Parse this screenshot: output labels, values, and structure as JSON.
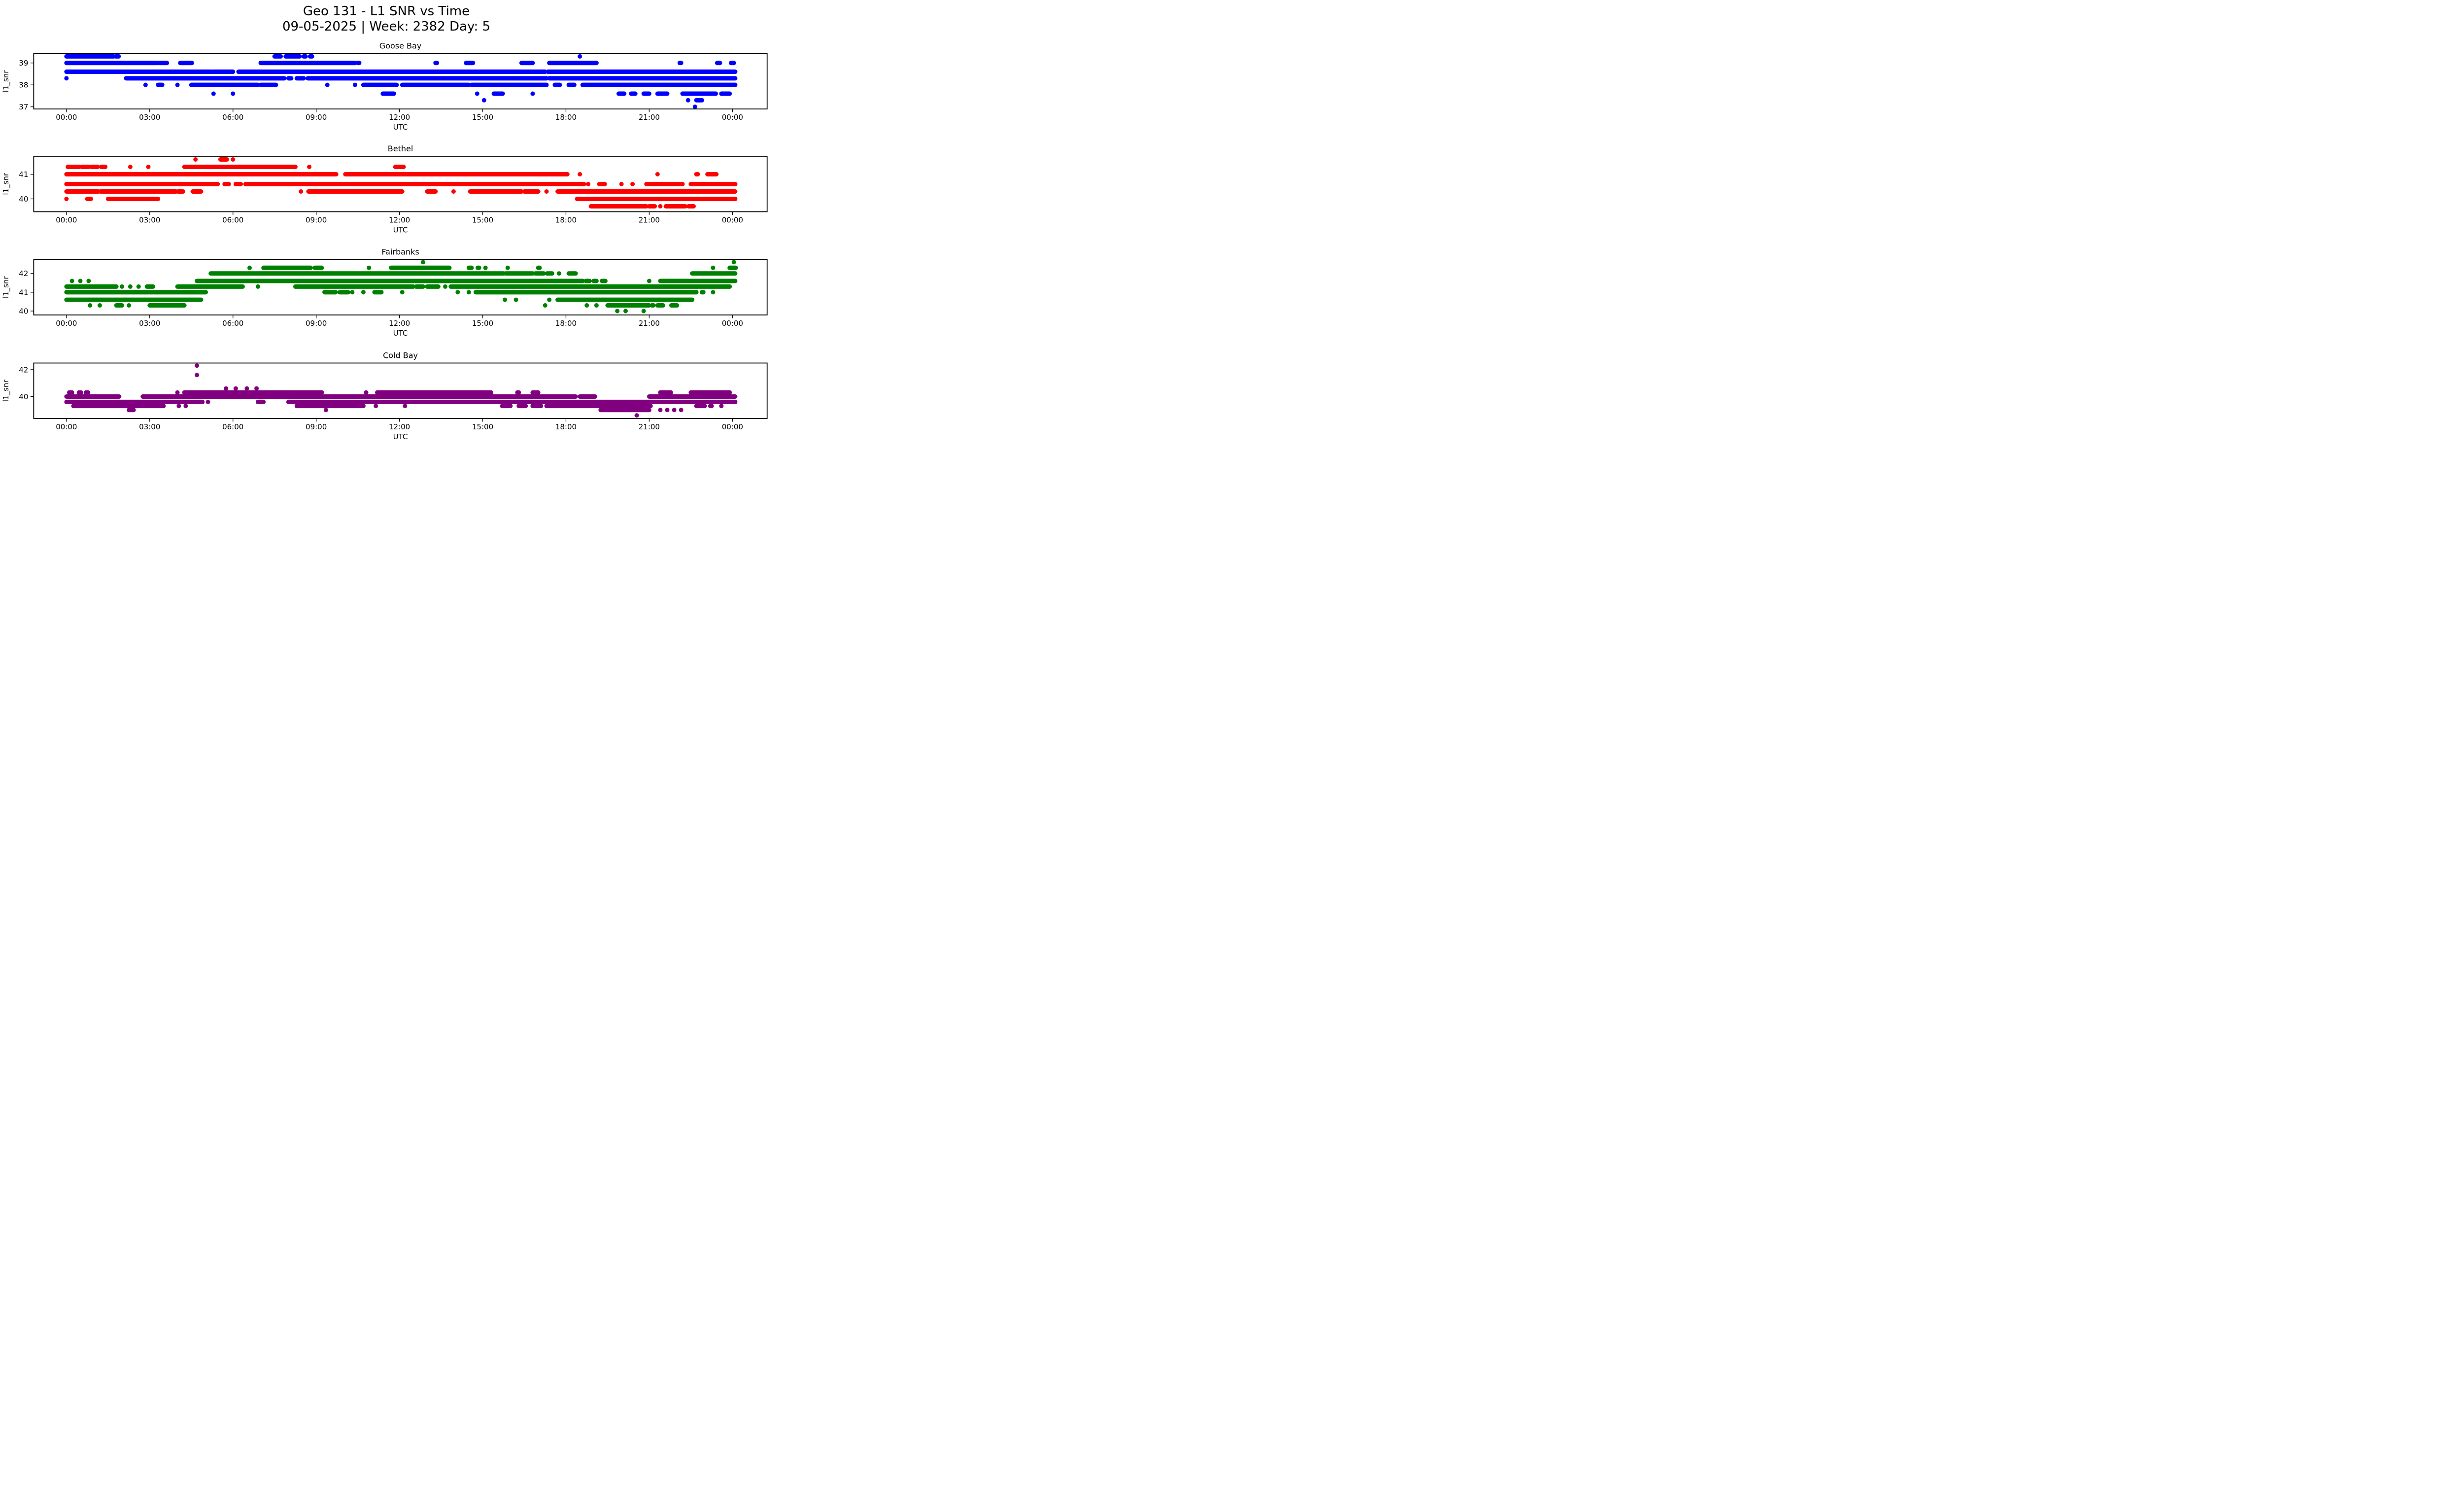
{
  "figure": {
    "title": "Geo 131 - L1 SNR vs Time",
    "subtitle": "09-05-2025 | Week: 2382 Day: 5",
    "background_color": "#ffffff",
    "text_color": "#000000"
  },
  "axes_common": {
    "xlabel": "UTC",
    "ylabel": "l1_snr",
    "x_tick_hours": [
      0,
      3,
      6,
      9,
      12,
      15,
      18,
      21,
      24
    ],
    "x_tick_labels": [
      "00:00",
      "03:00",
      "06:00",
      "09:00",
      "12:00",
      "15:00",
      "18:00",
      "21:00",
      "00:00"
    ],
    "grid": false,
    "legend": "none"
  },
  "chart_data": [
    {
      "type": "scatter",
      "title": "Goose Bay",
      "color": "#0000ff",
      "xlabel": "UTC",
      "ylabel": "l1_snr",
      "ylim": [
        36.9,
        39.43
      ],
      "xlim": [
        -1.18,
        25.25
      ],
      "y_ticks": [
        37,
        38,
        39
      ],
      "bands": [
        {
          "snr": 39.3,
          "segments": [
            [
              0,
              1.7
            ],
            [
              1.78,
              1.88
            ],
            [
              7.5,
              7.72
            ],
            [
              7.9,
              8.4
            ],
            [
              8.55,
              8.62
            ],
            [
              8.78,
              8.85
            ],
            [
              18.5,
              18.5
            ]
          ]
        },
        {
          "snr": 39.0,
          "segments": [
            [
              0,
              3.28
            ],
            [
              3.35,
              3.62
            ],
            [
              4.1,
              4.52
            ],
            [
              7.0,
              10.4
            ],
            [
              10.5,
              10.55
            ],
            [
              13.3,
              13.35
            ],
            [
              14.4,
              14.65
            ],
            [
              16.4,
              16.8
            ],
            [
              17.4,
              19.1
            ],
            [
              22.1,
              22.15
            ],
            [
              23.45,
              23.55
            ],
            [
              23.95,
              24.05
            ]
          ]
        },
        {
          "snr": 38.6,
          "segments": [
            [
              0,
              5.25
            ],
            [
              5.3,
              6.0
            ],
            [
              6.2,
              17.25
            ],
            [
              17.35,
              24.1
            ]
          ]
        },
        {
          "snr": 38.3,
          "segments": [
            [
              0,
              0
            ],
            [
              2.15,
              7.85
            ],
            [
              8.0,
              8.1
            ],
            [
              8.3,
              8.55
            ],
            [
              8.7,
              17.3
            ],
            [
              17.4,
              24.1
            ]
          ]
        },
        {
          "snr": 38.0,
          "segments": [
            [
              2.85,
              2.85
            ],
            [
              3.3,
              3.45
            ],
            [
              4.0,
              4.0
            ],
            [
              4.5,
              6.9
            ],
            [
              7.0,
              7.55
            ],
            [
              9.4,
              9.4
            ],
            [
              10.4,
              10.4
            ],
            [
              10.7,
              11.9
            ],
            [
              12.1,
              14.5
            ],
            [
              14.6,
              17.3
            ],
            [
              17.6,
              17.78
            ],
            [
              18.1,
              18.3
            ],
            [
              18.6,
              24.1
            ]
          ]
        },
        {
          "snr": 37.6,
          "segments": [
            [
              5.3,
              5.3
            ],
            [
              6.0,
              6.0
            ],
            [
              11.4,
              11.8
            ],
            [
              14.8,
              14.8
            ],
            [
              15.4,
              15.72
            ],
            [
              16.8,
              16.8
            ],
            [
              19.9,
              20.1
            ],
            [
              20.35,
              20.5
            ],
            [
              20.8,
              21.0
            ],
            [
              21.3,
              21.65
            ],
            [
              22.2,
              23.4
            ],
            [
              23.6,
              23.9
            ]
          ]
        },
        {
          "snr": 37.3,
          "segments": [
            [
              15.05,
              15.05
            ],
            [
              22.4,
              22.4
            ],
            [
              22.7,
              22.9
            ]
          ]
        },
        {
          "snr": 37.0,
          "segments": [
            [
              22.65,
              22.65
            ]
          ]
        }
      ]
    },
    {
      "type": "scatter",
      "title": "Bethel",
      "color": "#ff0000",
      "xlabel": "UTC",
      "ylabel": "l1_snr",
      "ylim": [
        39.48,
        41.73
      ],
      "xlim": [
        -1.18,
        25.25
      ],
      "y_ticks": [
        40,
        41
      ],
      "bands": [
        {
          "snr": 41.6,
          "segments": [
            [
              4.65,
              4.65
            ],
            [
              5.55,
              5.78
            ],
            [
              6.0,
              6.0
            ]
          ]
        },
        {
          "snr": 41.3,
          "segments": [
            [
              0.05,
              0.45
            ],
            [
              0.55,
              0.8
            ],
            [
              0.9,
              1.12
            ],
            [
              1.25,
              1.4
            ],
            [
              2.3,
              2.3
            ],
            [
              2.95,
              2.95
            ],
            [
              4.25,
              8.25
            ],
            [
              8.75,
              8.75
            ],
            [
              11.85,
              12.15
            ]
          ]
        },
        {
          "snr": 41.0,
          "segments": [
            [
              0,
              9.72
            ],
            [
              10.05,
              18.05
            ],
            [
              18.5,
              18.5
            ],
            [
              21.3,
              21.3
            ],
            [
              22.7,
              22.75
            ],
            [
              23.1,
              23.42
            ]
          ]
        },
        {
          "snr": 40.6,
          "segments": [
            [
              0,
              5.45
            ],
            [
              5.7,
              5.85
            ],
            [
              6.1,
              6.28
            ],
            [
              6.45,
              18.65
            ],
            [
              18.8,
              18.8
            ],
            [
              19.2,
              19.4
            ],
            [
              20.0,
              20.0
            ],
            [
              20.4,
              20.4
            ],
            [
              20.9,
              22.2
            ],
            [
              22.5,
              24.1
            ]
          ]
        },
        {
          "snr": 40.3,
          "segments": [
            [
              0,
              1.15
            ],
            [
              1.22,
              3.95
            ],
            [
              4.02,
              4.2
            ],
            [
              4.55,
              4.85
            ],
            [
              8.45,
              8.45
            ],
            [
              8.72,
              12.1
            ],
            [
              13.0,
              13.3
            ],
            [
              13.95,
              13.95
            ],
            [
              14.55,
              16.4
            ],
            [
              16.5,
              17.0
            ],
            [
              17.3,
              17.3
            ],
            [
              17.7,
              24.1
            ]
          ]
        },
        {
          "snr": 40.0,
          "segments": [
            [
              0,
              0
            ],
            [
              0.75,
              0.88
            ],
            [
              1.5,
              3.3
            ],
            [
              18.4,
              24.1
            ]
          ]
        },
        {
          "snr": 39.7,
          "segments": [
            [
              18.9,
              20.9
            ],
            [
              21.0,
              21.2
            ],
            [
              21.4,
              21.4
            ],
            [
              21.6,
              22.3
            ],
            [
              22.42,
              22.6
            ]
          ]
        }
      ]
    },
    {
      "type": "scatter",
      "title": "Fairbanks",
      "color": "#008000",
      "xlabel": "UTC",
      "ylabel": "l1_snr",
      "ylim": [
        39.79,
        42.74
      ],
      "xlim": [
        -1.18,
        25.25
      ],
      "y_ticks": [
        40,
        41,
        42
      ],
      "bands": [
        {
          "snr": 42.6,
          "segments": [
            [
              12.85,
              12.85
            ],
            [
              24.05,
              24.05
            ]
          ]
        },
        {
          "snr": 42.3,
          "segments": [
            [
              6.6,
              6.6
            ],
            [
              7.1,
              8.8
            ],
            [
              8.95,
              9.2
            ],
            [
              10.9,
              10.9
            ],
            [
              11.7,
              13.8
            ],
            [
              14.5,
              14.6
            ],
            [
              14.82,
              14.87
            ],
            [
              15.1,
              15.1
            ],
            [
              15.9,
              15.9
            ],
            [
              17.0,
              17.05
            ],
            [
              23.3,
              23.3
            ],
            [
              23.9,
              24.12
            ]
          ]
        },
        {
          "snr": 42.0,
          "segments": [
            [
              5.2,
              15.75
            ],
            [
              15.82,
              16.8
            ],
            [
              16.9,
              17.2
            ],
            [
              17.32,
              17.5
            ],
            [
              17.75,
              17.75
            ],
            [
              18.1,
              18.35
            ],
            [
              22.55,
              24.1
            ]
          ]
        },
        {
          "snr": 41.6,
          "segments": [
            [
              0.2,
              0.2
            ],
            [
              0.5,
              0.5
            ],
            [
              0.8,
              0.8
            ],
            [
              4.7,
              18.6
            ],
            [
              18.72,
              18.85
            ],
            [
              19.0,
              19.1
            ],
            [
              19.3,
              19.42
            ],
            [
              21.0,
              21.0
            ],
            [
              21.4,
              24.1
            ]
          ]
        },
        {
          "snr": 41.3,
          "segments": [
            [
              0,
              1.8
            ],
            [
              2.0,
              2.0
            ],
            [
              2.3,
              2.3
            ],
            [
              2.6,
              2.6
            ],
            [
              2.9,
              3.12
            ],
            [
              4.0,
              6.35
            ],
            [
              6.9,
              6.9
            ],
            [
              8.25,
              12.07
            ],
            [
              12.12,
              12.5
            ],
            [
              12.6,
              12.85
            ],
            [
              13.0,
              13.4
            ],
            [
              13.65,
              13.65
            ],
            [
              13.85,
              23.9
            ]
          ]
        },
        {
          "snr": 41.0,
          "segments": [
            [
              0,
              5.02
            ],
            [
              9.3,
              9.7
            ],
            [
              9.85,
              10.15
            ],
            [
              10.3,
              10.3
            ],
            [
              10.7,
              10.7
            ],
            [
              11.1,
              11.35
            ],
            [
              12.1,
              12.1
            ],
            [
              14.1,
              14.1
            ],
            [
              14.5,
              14.5
            ],
            [
              14.75,
              22.7
            ],
            [
              22.9,
              22.95
            ],
            [
              23.3,
              23.3
            ]
          ]
        },
        {
          "snr": 40.6,
          "segments": [
            [
              0,
              4.85
            ],
            [
              15.8,
              15.8
            ],
            [
              16.2,
              16.2
            ],
            [
              17.4,
              17.4
            ],
            [
              17.7,
              22.55
            ]
          ]
        },
        {
          "snr": 40.3,
          "segments": [
            [
              0.85,
              0.85
            ],
            [
              1.2,
              1.2
            ],
            [
              1.8,
              2.0
            ],
            [
              2.25,
              2.25
            ],
            [
              3.0,
              4.25
            ],
            [
              17.25,
              17.25
            ],
            [
              18.75,
              18.75
            ],
            [
              19.1,
              19.1
            ],
            [
              19.5,
              21.0
            ],
            [
              21.1,
              21.15
            ],
            [
              21.3,
              21.5
            ],
            [
              21.8,
              22.0
            ]
          ]
        },
        {
          "snr": 40.0,
          "segments": [
            [
              19.85,
              19.85
            ],
            [
              20.15,
              20.15
            ],
            [
              20.8,
              20.8
            ]
          ]
        }
      ]
    },
    {
      "type": "scatter",
      "title": "Cold Bay",
      "color": "#800080",
      "xlabel": "UTC",
      "ylabel": "l1_snr",
      "ylim": [
        38.37,
        42.49
      ],
      "xlim": [
        -1.18,
        25.25
      ],
      "y_ticks": [
        40,
        42
      ],
      "bands": [
        {
          "snr": 42.3,
          "segments": [
            [
              4.7,
              4.7
            ]
          ]
        },
        {
          "snr": 41.6,
          "segments": [
            [
              4.7,
              4.7
            ]
          ]
        },
        {
          "snr": 40.6,
          "segments": [
            [
              5.75,
              5.75
            ],
            [
              6.1,
              6.1
            ],
            [
              6.5,
              6.5
            ],
            [
              6.85,
              6.85
            ]
          ]
        },
        {
          "snr": 40.3,
          "segments": [
            [
              0.1,
              0.2
            ],
            [
              0.45,
              0.52
            ],
            [
              0.7,
              0.78
            ],
            [
              4.0,
              4.0
            ],
            [
              4.25,
              9.2
            ],
            [
              10.8,
              10.8
            ],
            [
              11.2,
              15.3
            ],
            [
              16.25,
              16.3
            ],
            [
              16.8,
              17.0
            ],
            [
              21.4,
              21.78
            ],
            [
              22.5,
              23.9
            ]
          ]
        },
        {
          "snr": 40.0,
          "segments": [
            [
              0,
              1.9
            ],
            [
              2.75,
              18.35
            ],
            [
              18.5,
              19.05
            ],
            [
              21.0,
              24.1
            ]
          ]
        },
        {
          "snr": 39.6,
          "segments": [
            [
              0,
              4.9
            ],
            [
              5.1,
              5.1
            ],
            [
              6.9,
              7.1
            ],
            [
              8.0,
              24.1
            ]
          ]
        },
        {
          "snr": 39.3,
          "segments": [
            [
              0.25,
              3.5
            ],
            [
              4.05,
              4.05
            ],
            [
              4.3,
              4.3
            ],
            [
              8.3,
              10.7
            ],
            [
              11.15,
              11.15
            ],
            [
              12.2,
              12.2
            ],
            [
              15.7,
              16.0
            ],
            [
              16.3,
              16.55
            ],
            [
              16.8,
              17.1
            ],
            [
              17.3,
              21.05
            ],
            [
              22.7,
              23.0
            ],
            [
              23.2,
              23.25
            ],
            [
              23.6,
              23.6
            ]
          ]
        },
        {
          "snr": 39.0,
          "segments": [
            [
              2.25,
              2.42
            ],
            [
              9.35,
              9.35
            ],
            [
              19.25,
              21.0
            ],
            [
              21.4,
              21.4
            ],
            [
              21.65,
              21.65
            ],
            [
              21.9,
              21.9
            ],
            [
              22.15,
              22.15
            ]
          ]
        },
        {
          "snr": 38.6,
          "segments": [
            [
              20.55,
              20.55
            ]
          ]
        }
      ]
    }
  ]
}
